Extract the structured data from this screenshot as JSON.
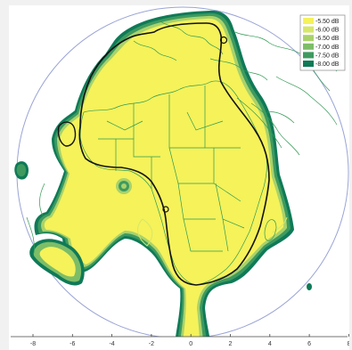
{
  "legend": {
    "items": [
      {
        "label": "-5.50 dB",
        "color": "#f5f25a"
      },
      {
        "label": "-6.00 dB",
        "color": "#d6e769"
      },
      {
        "label": "-6.50 dB",
        "color": "#a9d26b"
      },
      {
        "label": "-7.00 dB",
        "color": "#7dbd67"
      },
      {
        "label": "-7.50 dB",
        "color": "#3e9a5f"
      },
      {
        "label": "-8.00 dB",
        "color": "#0f7a57"
      }
    ]
  },
  "x_axis": {
    "ticks": [
      "-8",
      "-6",
      "-4",
      "-2",
      "0",
      "2",
      "4",
      "6",
      "8"
    ]
  },
  "colors": {
    "earth_disk_outline": "#9aa4d6",
    "coastline": "#2f9a52",
    "footprint_fill": "#f5f25a",
    "footprint_edge": "#0f7a57",
    "service_area_outline": "#111111"
  }
}
